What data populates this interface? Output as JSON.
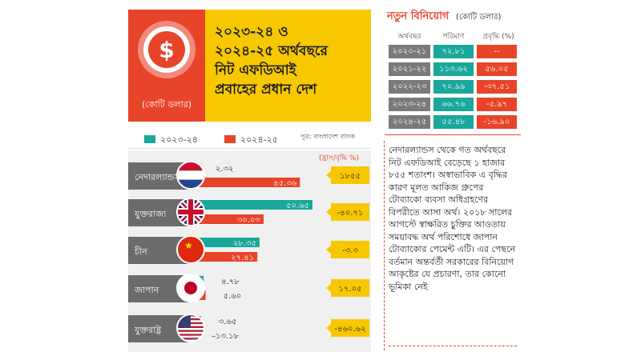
{
  "header": {
    "title_lines": [
      "২০২৩-২৪ ও",
      "২০২৪-২৫ অর্থবছরে",
      "নিট এফডিআই",
      "প্রবাহের প্রধান দেশ"
    ],
    "unit_label": "(কোটি ডলার)",
    "icon": "dollar-coin-icon"
  },
  "legend": {
    "items": [
      {
        "label": "২০২৩-২৪",
        "color": "#1aa89a"
      },
      {
        "label": "২০২৪-২৫",
        "color": "#e8442a"
      }
    ],
    "source": "সূত্র: বাংলাদেশ ব্যাংক"
  },
  "chart_data": {
    "type": "bar",
    "categories": [
      "নেদারল্যান্ডস",
      "যুক্তরাজ্য",
      "চীন",
      "জাপান",
      "যুক্তরাষ্ট্র"
    ],
    "flag_icons": [
      "netherlands-flag-icon",
      "uk-flag-icon",
      "china-flag-icon",
      "japan-flag-icon",
      "usa-flag-icon"
    ],
    "series": [
      {
        "name": "২০২৩-২৪",
        "values": [
          2.32,
          50.65,
          28.35,
          4.78,
          3.65
        ],
        "labels": [
          "২.৩২",
          "৫০.৬৫",
          "২৮.৩৫",
          "৪.৭৮",
          "৩.৬৫"
        ]
      },
      {
        "name": "২০২৪-২৫",
        "values": [
          45.36,
          30.03,
          27.41,
          5.6,
          -13.18
        ],
        "labels": [
          "৪৫.৩৬",
          "৩০.০৩",
          "২৭.৪১",
          "৫.৬০",
          "–১৩.১৮"
        ]
      }
    ],
    "growth_header": "(হ্রাস/বৃদ্ধি %)",
    "growth": [
      "১৮৫৫",
      "-৪০.৭১",
      "-৩.৩",
      "১৭.০৫",
      "-৪৬০.৬২"
    ],
    "colors": {
      "series1": "#1aa89a",
      "series2": "#e8442a",
      "label_box": "#6b6b6b",
      "growth_box": "#f7c800"
    }
  },
  "investment_panel": {
    "title": "নতুন বিনিয়োগ",
    "subtitle": "(কোটি ডলার)",
    "headers": [
      "অর্থবছর",
      "পরিমাণ",
      "প্রবৃদ্ধি (%)"
    ],
    "rows": [
      {
        "year": "২০২০-২১",
        "amount": "৭২.৮১",
        "growth": "--"
      },
      {
        "year": "২০২১-২২",
        "amount": "১১৩.৬২",
        "growth": "৫৬.০৫"
      },
      {
        "year": "২০২২-২৩",
        "amount": "৭০.৯৯",
        "growth": "-৩৭.৫১"
      },
      {
        "year": "২০২৩-২৪",
        "amount": "৬৬.৭৬",
        "growth": "-৫.৯৭"
      },
      {
        "year": "২০২৪-২৫",
        "amount": "৫৫.৪৮",
        "growth": "-১৬.৯০"
      }
    ]
  },
  "paragraph": "নেদারল্যান্ডস থেকে গত অর্থবছরে নিট এফডিআই বেড়েছে ১ হাজার ৮৫৫ শতাংশ। অস্বাভাবিক এ বৃদ্ধির কারণ মূলত আকিজ গ্রুপের টোব্যাকো ব্যবসা অধিগ্রহণের বিপরীতে আসা অর্থ। ২০১৮ সালের আগস্টে স্বাক্ষরিত চুক্তির আওতায় সময়াবদ্ধ অর্থ পরিশোধে জাপান টোব্যাকোর পেমেন্ট এটি। এর পেছনে বর্তমান অন্তর্বর্তী সরকারের বিনিয়োগ আকৃষ্টের যে প্রচারণা, তার কোনো ভূমিকা নেই"
}
